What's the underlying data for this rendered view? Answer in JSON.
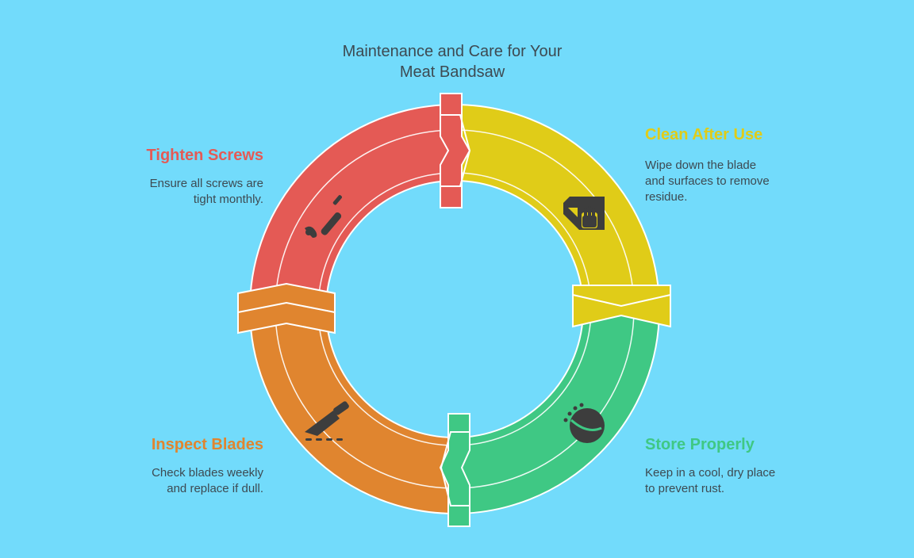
{
  "title": {
    "line1": "Maintenance and Care for Your",
    "line2": "Meat Bandsaw"
  },
  "steps": [
    {
      "label": "Clean After Use",
      "desc_line1": "Wipe down the blade",
      "desc_line2": "and surfaces to remove",
      "desc_line3": "residue.",
      "color": "#e0cc18",
      "icon": "cleaning-cloth-hand-icon"
    },
    {
      "label": "Store Properly",
      "desc_line1": "Keep in a cool, dry place",
      "desc_line2": "to prevent rust.",
      "color": "#3fc884",
      "icon": "storage-ball-icon"
    },
    {
      "label": "Inspect Blades",
      "desc_line1": "Check blades weekly",
      "desc_line2": "and replace if dull.",
      "color": "#e0852f",
      "icon": "knife-blade-icon"
    },
    {
      "label": "Tighten Screws",
      "desc_line1": "Ensure all screws are",
      "desc_line2": "tight monthly.",
      "color": "#e45a55",
      "icon": "screwdriver-icon"
    }
  ]
}
